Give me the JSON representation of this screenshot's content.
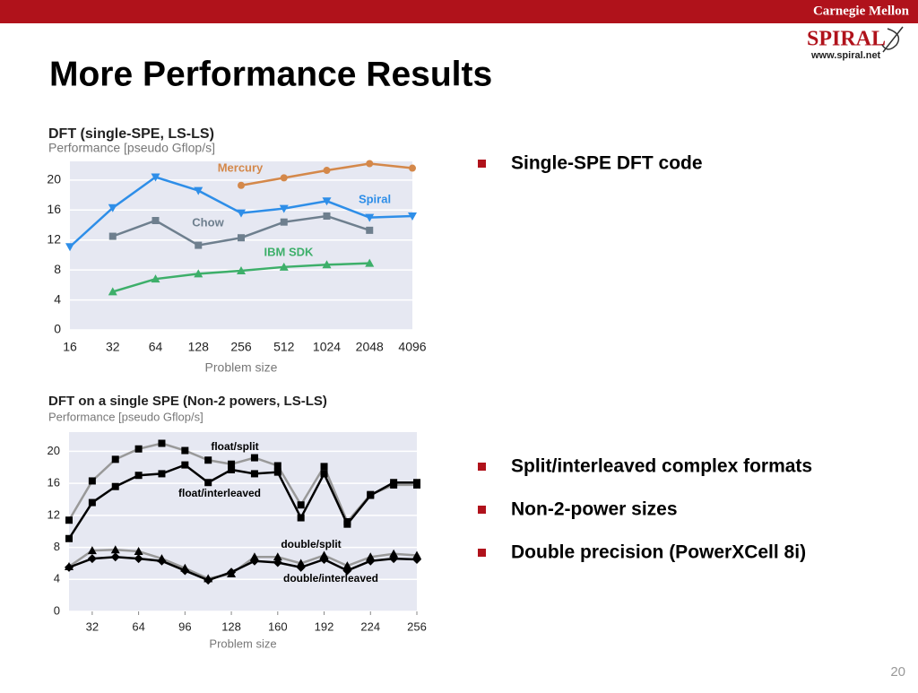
{
  "header": {
    "institution": "Carnegie Mellon",
    "logo": "SPIRAL",
    "logo_url": "www.spiral.net",
    "title": "More Performance Results"
  },
  "bullets_top": [
    "Single-SPE DFT code"
  ],
  "bullets_bottom": [
    "Split/interleaved complex formats",
    "Non-2-power sizes",
    "Double precision (PowerXCell 8i)"
  ],
  "page_number": "20",
  "chart_data": [
    {
      "type": "line",
      "title": "DFT (single-SPE, LS-LS)",
      "subtitle": "Performance [pseudo Gflop/s]",
      "x_label": "Problem size",
      "categories": [
        "16",
        "32",
        "64",
        "128",
        "256",
        "512",
        "1024",
        "2048",
        "4096"
      ],
      "ylim": [
        0,
        22.5
      ],
      "yticks": [
        0,
        4,
        8,
        12,
        16,
        20
      ],
      "grid": true,
      "series": [
        {
          "name": "Mercury",
          "color": "#d4884a",
          "marker": "circle",
          "values": [
            null,
            null,
            null,
            null,
            19.3,
            20.3,
            21.3,
            22.2,
            21.6
          ]
        },
        {
          "name": "Spiral",
          "color": "#2e8ee8",
          "marker": "triangle-down",
          "values": [
            11.1,
            16.3,
            20.4,
            18.6,
            15.6,
            16.2,
            17.2,
            15.0,
            15.2
          ]
        },
        {
          "name": "Chow",
          "color": "#6e7f8e",
          "marker": "square",
          "values": [
            null,
            12.5,
            14.6,
            11.3,
            12.3,
            14.4,
            15.2,
            13.3,
            null
          ]
        },
        {
          "name": "IBM SDK",
          "color": "#3daf6a",
          "marker": "triangle",
          "values": [
            null,
            5.1,
            6.8,
            7.5,
            7.9,
            8.4,
            8.7,
            8.9,
            null
          ]
        }
      ]
    },
    {
      "type": "line",
      "title": "DFT on a single SPE (Non-2 powers, LS-LS)",
      "subtitle": "Performance [pseudo Gflop/s]",
      "x_label": "Problem size",
      "x": [
        16,
        32,
        48,
        64,
        80,
        96,
        112,
        128,
        144,
        160,
        176,
        192,
        208,
        224,
        240,
        256
      ],
      "xlim": [
        16,
        256
      ],
      "xticks": [
        32,
        64,
        96,
        128,
        160,
        192,
        224,
        256
      ],
      "ylim": [
        0,
        22.4
      ],
      "yticks": [
        0,
        4,
        8,
        12,
        16,
        20
      ],
      "grid": true,
      "series": [
        {
          "name": "float/split",
          "color": "#999999",
          "marker_color": "#000000",
          "marker": "square",
          "values": [
            11.4,
            16.3,
            19.0,
            20.3,
            21.0,
            20.1,
            18.9,
            18.4,
            19.2,
            18.2,
            13.3,
            18.1,
            11.2,
            14.6,
            15.8,
            15.8
          ]
        },
        {
          "name": "float/interleaved",
          "color": "#000000",
          "marker_color": "#000000",
          "marker": "square",
          "values": [
            9.1,
            13.6,
            15.6,
            17.0,
            17.2,
            18.3,
            16.1,
            17.7,
            17.2,
            17.4,
            11.7,
            17.2,
            10.9,
            14.5,
            16.1,
            16.1
          ]
        },
        {
          "name": "double/split",
          "color": "#999999",
          "marker_color": "#000000",
          "marker": "triangle",
          "values": [
            5.6,
            7.6,
            7.7,
            7.5,
            6.6,
            5.4,
            4.1,
            4.7,
            6.8,
            6.8,
            6.0,
            7.0,
            5.7,
            6.8,
            7.2,
            7.0
          ]
        },
        {
          "name": "double/interleaved",
          "color": "#000000",
          "marker_color": "#000000",
          "marker": "diamond",
          "values": [
            5.5,
            6.6,
            6.8,
            6.6,
            6.3,
            5.1,
            3.9,
            4.9,
            6.3,
            6.1,
            5.5,
            6.5,
            5.1,
            6.3,
            6.6,
            6.5
          ]
        }
      ]
    }
  ]
}
